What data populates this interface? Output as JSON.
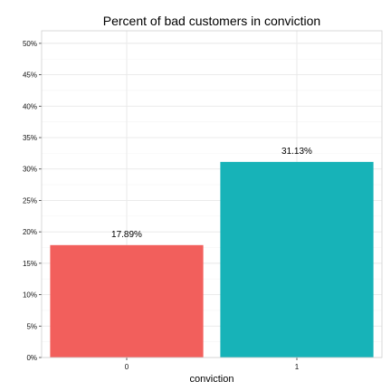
{
  "chart_data": {
    "type": "bar",
    "title": "Percent of bad customers in conviction",
    "xlabel": "conviction",
    "ylabel": "",
    "categories": [
      "0",
      "1"
    ],
    "values": [
      17.89,
      31.13
    ],
    "data_labels": [
      "17.89%",
      "31.13%"
    ],
    "bar_colors": [
      "#F25F5C",
      "#17B3B8"
    ],
    "ylim": [
      0,
      52
    ],
    "y_ticks": [
      0,
      5,
      10,
      15,
      20,
      25,
      30,
      35,
      40,
      45,
      50
    ],
    "y_tick_labels": [
      "0%",
      "5%",
      "10%",
      "15%",
      "20%",
      "25%",
      "30%",
      "35%",
      "40%",
      "45%",
      "50%"
    ],
    "grid": true,
    "legend": "none"
  }
}
